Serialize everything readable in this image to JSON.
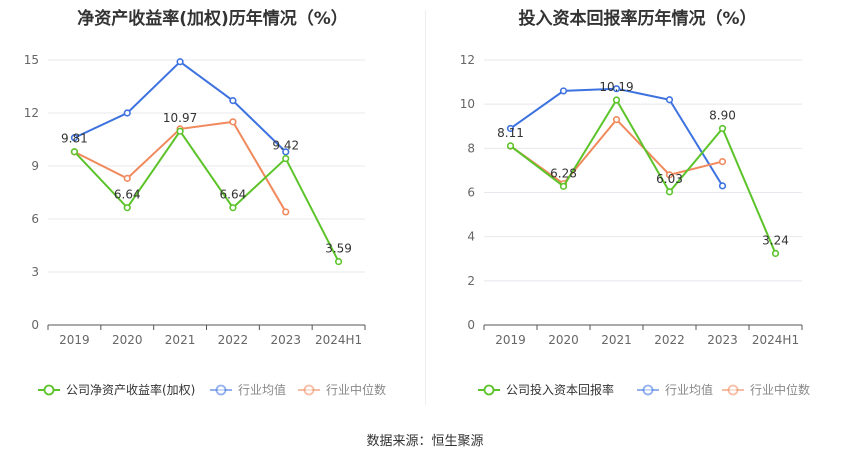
{
  "source_label": "数据来源：恒生聚源",
  "colors": {
    "company": "#5cc42a",
    "avg": "#3d72e0",
    "median": "#f08a5d",
    "grid": "#e8e8ee",
    "axis": "#555555",
    "tick": "#666666"
  },
  "chart_data": [
    {
      "type": "line",
      "title": "净资产收益率(加权)历年情况（%）",
      "categories": [
        "2019",
        "2020",
        "2021",
        "2022",
        "2023",
        "2024H1"
      ],
      "ylim": [
        0,
        15
      ],
      "yticks": [
        0,
        3,
        6,
        9,
        12,
        15
      ],
      "grid": true,
      "legend_position": "bottom",
      "series": [
        {
          "name": "公司净资产收益率(加权)",
          "key": "company",
          "values": [
            9.81,
            6.64,
            10.97,
            6.64,
            9.42,
            3.59
          ],
          "labels": [
            "9.81",
            "6.64",
            "10.97",
            "6.64",
            "9.42",
            "3.59"
          ]
        },
        {
          "name": "行业均值",
          "key": "avg",
          "values": [
            10.6,
            12.0,
            14.9,
            12.7,
            9.8,
            null
          ]
        },
        {
          "name": "行业中位数",
          "key": "median",
          "values": [
            9.8,
            8.3,
            11.1,
            11.5,
            6.4,
            null
          ]
        }
      ]
    },
    {
      "type": "line",
      "title": "投入资本回报率历年情况（%）",
      "categories": [
        "2019",
        "2020",
        "2021",
        "2022",
        "2023",
        "2024H1"
      ],
      "ylim": [
        0,
        12
      ],
      "yticks": [
        0,
        2,
        4,
        6,
        8,
        10,
        12
      ],
      "grid": true,
      "legend_position": "bottom",
      "series": [
        {
          "name": "公司投入资本回报率",
          "key": "company",
          "values": [
            8.11,
            6.28,
            10.19,
            6.03,
            8.9,
            3.24
          ],
          "labels": [
            "8.11",
            "6.28",
            "10.19",
            "6.03",
            "8.90",
            "3.24"
          ]
        },
        {
          "name": "行业均值",
          "key": "avg",
          "values": [
            8.9,
            10.6,
            10.7,
            10.2,
            6.3,
            null
          ]
        },
        {
          "name": "行业中位数",
          "key": "median",
          "values": [
            8.1,
            6.4,
            9.3,
            6.8,
            7.4,
            null
          ]
        }
      ]
    }
  ]
}
